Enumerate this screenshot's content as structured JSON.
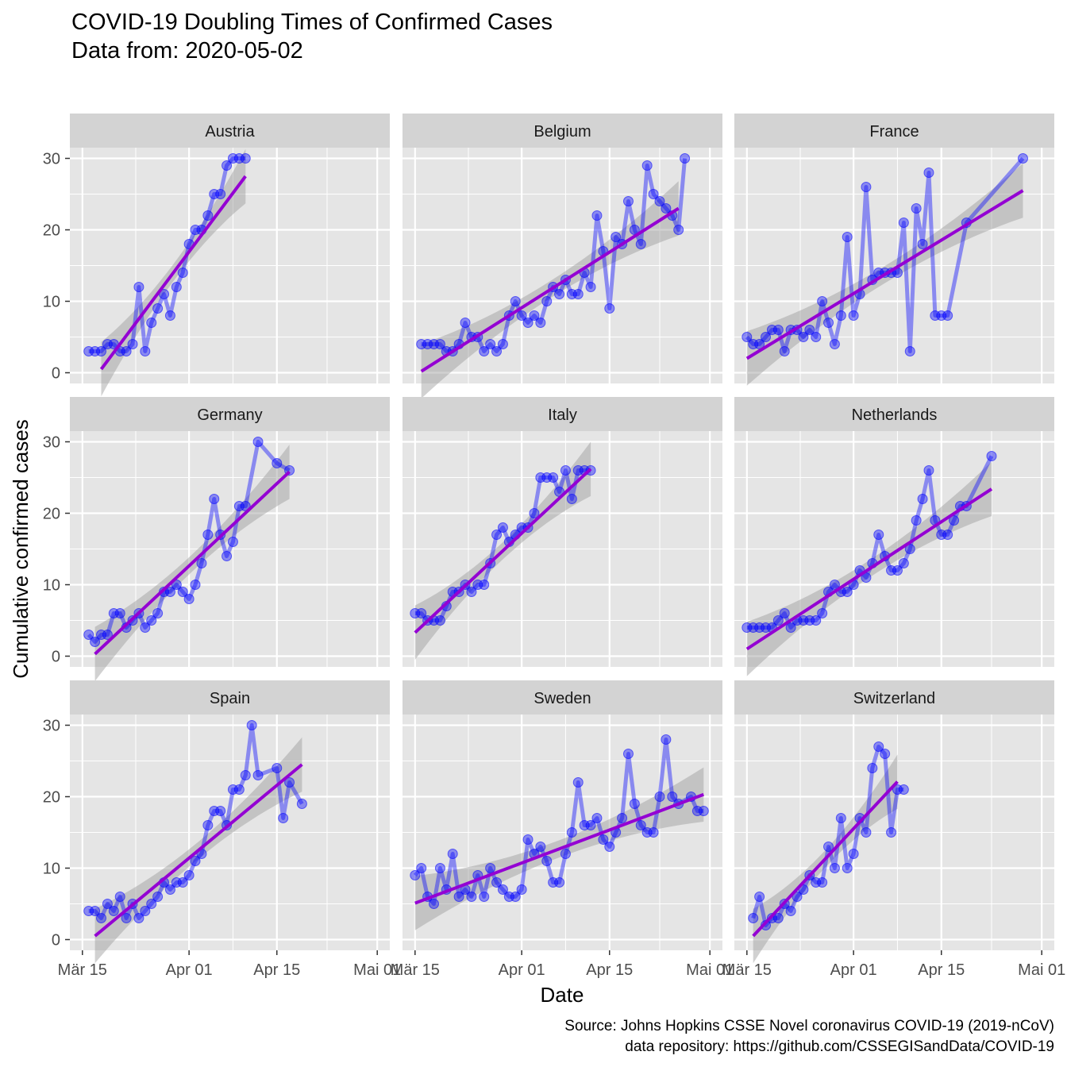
{
  "title": "COVID-19 Doubling Times of Confirmed Cases",
  "subtitle": "Data from: 2020-05-02",
  "caption": [
    "Source: Johns Hopkins CSSE Novel coronavirus COVID-19 (2019-nCoV)",
    "data repository: https://github.com/CSSEGISandData/COVID-19"
  ],
  "colors": {
    "panel_bg": "#e5e5e5",
    "strip_bg": "#d3d3d3",
    "grid": "#ffffff",
    "points": "#0000ff",
    "line": "#0000ff",
    "fit": "#9400d3",
    "ribbon": "#999999"
  },
  "chart_data": {
    "type": "line",
    "facet_layout": {
      "rows": 3,
      "cols": 3
    },
    "xlabel": "Date",
    "ylabel": "Cumulative confirmed cases",
    "x_ticks": [
      "Mär 15",
      "Apr 01",
      "Apr 15",
      "Mai 01"
    ],
    "x_tick_values": [
      "2020-03-15",
      "2020-04-01",
      "2020-04-15",
      "2020-05-01"
    ],
    "xlim": [
      "2020-03-13",
      "2020-05-03"
    ],
    "y_ticks": [
      0,
      10,
      20,
      30
    ],
    "ylim": [
      -1.5,
      31.5
    ],
    "grid": true,
    "fit": "linear regression with confidence band",
    "panels": [
      {
        "name": "Austria",
        "x": [
          "2020-03-16",
          "2020-03-17",
          "2020-03-18",
          "2020-03-19",
          "2020-03-20",
          "2020-03-21",
          "2020-03-22",
          "2020-03-23",
          "2020-03-24",
          "2020-03-25",
          "2020-03-26",
          "2020-03-27",
          "2020-03-28",
          "2020-03-29",
          "2020-03-30",
          "2020-03-31",
          "2020-04-01",
          "2020-04-02",
          "2020-04-03",
          "2020-04-04",
          "2020-04-05",
          "2020-04-06",
          "2020-04-07",
          "2020-04-08",
          "2020-04-09",
          "2020-04-10"
        ],
        "y": [
          3,
          3,
          3,
          4,
          4,
          3,
          3,
          4,
          12,
          3,
          7,
          9,
          11,
          8,
          12,
          14,
          18,
          20,
          20,
          22,
          25,
          25,
          29,
          30,
          30,
          30
        ],
        "fit": {
          "x": [
            "2020-03-18",
            "2020-04-10"
          ],
          "y": [
            0.5,
            27.5
          ]
        }
      },
      {
        "name": "Belgium",
        "x": [
          "2020-03-16",
          "2020-03-17",
          "2020-03-18",
          "2020-03-19",
          "2020-03-20",
          "2020-03-21",
          "2020-03-22",
          "2020-03-23",
          "2020-03-24",
          "2020-03-25",
          "2020-03-26",
          "2020-03-27",
          "2020-03-28",
          "2020-03-29",
          "2020-03-30",
          "2020-03-31",
          "2020-04-01",
          "2020-04-02",
          "2020-04-03",
          "2020-04-04",
          "2020-04-05",
          "2020-04-06",
          "2020-04-07",
          "2020-04-08",
          "2020-04-09",
          "2020-04-10",
          "2020-04-11",
          "2020-04-12",
          "2020-04-13",
          "2020-04-14",
          "2020-04-15",
          "2020-04-16",
          "2020-04-17",
          "2020-04-18",
          "2020-04-19",
          "2020-04-20",
          "2020-04-21",
          "2020-04-22",
          "2020-04-23",
          "2020-04-24",
          "2020-04-25",
          "2020-04-26",
          "2020-04-27"
        ],
        "y": [
          4,
          4,
          4,
          4,
          3,
          3,
          4,
          7,
          5,
          5,
          3,
          4,
          3,
          4,
          8,
          10,
          8,
          7,
          8,
          7,
          10,
          12,
          11,
          13,
          11,
          11,
          14,
          12,
          22,
          17,
          9,
          19,
          18,
          24,
          20,
          18,
          29,
          25,
          24,
          23,
          22,
          20,
          30
        ],
        "fit": {
          "x": [
            "2020-03-16",
            "2020-04-26"
          ],
          "y": [
            0.2,
            23.0
          ]
        }
      },
      {
        "name": "France",
        "x": [
          "2020-03-15",
          "2020-03-16",
          "2020-03-17",
          "2020-03-18",
          "2020-03-19",
          "2020-03-20",
          "2020-03-21",
          "2020-03-22",
          "2020-03-23",
          "2020-03-24",
          "2020-03-25",
          "2020-03-26",
          "2020-03-27",
          "2020-03-28",
          "2020-03-29",
          "2020-03-30",
          "2020-03-31",
          "2020-04-01",
          "2020-04-02",
          "2020-04-03",
          "2020-04-04",
          "2020-04-05",
          "2020-04-06",
          "2020-04-07",
          "2020-04-08",
          "2020-04-09",
          "2020-04-10",
          "2020-04-11",
          "2020-04-12",
          "2020-04-13",
          "2020-04-14",
          "2020-04-15",
          "2020-04-16",
          "2020-04-19",
          "2020-04-28"
        ],
        "y": [
          5,
          4,
          4,
          5,
          6,
          6,
          3,
          6,
          6,
          5,
          6,
          5,
          10,
          7,
          4,
          8,
          19,
          8,
          11,
          26,
          13,
          14,
          14,
          14,
          14,
          21,
          3,
          23,
          18,
          28,
          8,
          8,
          8,
          21,
          30
        ],
        "fit": {
          "x": [
            "2020-03-15",
            "2020-04-28"
          ],
          "y": [
            2.0,
            25.5
          ]
        }
      },
      {
        "name": "Germany",
        "x": [
          "2020-03-16",
          "2020-03-17",
          "2020-03-18",
          "2020-03-19",
          "2020-03-20",
          "2020-03-21",
          "2020-03-22",
          "2020-03-23",
          "2020-03-24",
          "2020-03-25",
          "2020-03-26",
          "2020-03-27",
          "2020-03-28",
          "2020-03-29",
          "2020-03-30",
          "2020-03-31",
          "2020-04-01",
          "2020-04-02",
          "2020-04-03",
          "2020-04-04",
          "2020-04-05",
          "2020-04-06",
          "2020-04-07",
          "2020-04-08",
          "2020-04-09",
          "2020-04-10",
          "2020-04-12",
          "2020-04-15",
          "2020-04-17"
        ],
        "y": [
          3,
          2,
          3,
          3,
          6,
          6,
          4,
          5,
          6,
          4,
          5,
          6,
          9,
          9,
          10,
          9,
          8,
          10,
          13,
          17,
          22,
          17,
          14,
          16,
          21,
          21,
          30,
          27,
          26
        ],
        "fit": {
          "x": [
            "2020-03-17",
            "2020-04-17"
          ],
          "y": [
            0.3,
            25.8
          ]
        }
      },
      {
        "name": "Italy",
        "x": [
          "2020-03-15",
          "2020-03-16",
          "2020-03-17",
          "2020-03-18",
          "2020-03-19",
          "2020-03-20",
          "2020-03-21",
          "2020-03-22",
          "2020-03-23",
          "2020-03-24",
          "2020-03-25",
          "2020-03-26",
          "2020-03-27",
          "2020-03-28",
          "2020-03-29",
          "2020-03-30",
          "2020-03-31",
          "2020-04-01",
          "2020-04-02",
          "2020-04-03",
          "2020-04-04",
          "2020-04-05",
          "2020-04-06",
          "2020-04-07",
          "2020-04-08",
          "2020-04-09",
          "2020-04-10",
          "2020-04-11",
          "2020-04-12"
        ],
        "y": [
          6,
          6,
          5,
          5,
          5,
          7,
          9,
          9,
          10,
          9,
          10,
          10,
          13,
          17,
          18,
          16,
          17,
          18,
          18,
          20,
          25,
          25,
          25,
          23,
          26,
          22,
          26,
          26,
          26
        ],
        "fit": {
          "x": [
            "2020-03-15",
            "2020-04-12"
          ],
          "y": [
            3.3,
            26.2
          ]
        }
      },
      {
        "name": "Netherlands",
        "x": [
          "2020-03-15",
          "2020-03-16",
          "2020-03-17",
          "2020-03-18",
          "2020-03-19",
          "2020-03-20",
          "2020-03-21",
          "2020-03-22",
          "2020-03-23",
          "2020-03-24",
          "2020-03-25",
          "2020-03-26",
          "2020-03-27",
          "2020-03-28",
          "2020-03-29",
          "2020-03-30",
          "2020-03-31",
          "2020-04-01",
          "2020-04-02",
          "2020-04-03",
          "2020-04-04",
          "2020-04-05",
          "2020-04-06",
          "2020-04-07",
          "2020-04-08",
          "2020-04-09",
          "2020-04-10",
          "2020-04-11",
          "2020-04-12",
          "2020-04-13",
          "2020-04-14",
          "2020-04-15",
          "2020-04-16",
          "2020-04-17",
          "2020-04-18",
          "2020-04-19",
          "2020-04-23"
        ],
        "y": [
          4,
          4,
          4,
          4,
          4,
          5,
          6,
          4,
          5,
          5,
          5,
          5,
          6,
          9,
          10,
          9,
          9,
          10,
          12,
          11,
          13,
          17,
          14,
          12,
          12,
          13,
          15,
          19,
          22,
          26,
          19,
          17,
          17,
          19,
          21,
          21,
          28
        ],
        "fit": {
          "x": [
            "2020-03-15",
            "2020-04-23"
          ],
          "y": [
            1.0,
            23.4
          ]
        }
      },
      {
        "name": "Spain",
        "x": [
          "2020-03-16",
          "2020-03-17",
          "2020-03-18",
          "2020-03-19",
          "2020-03-20",
          "2020-03-21",
          "2020-03-22",
          "2020-03-23",
          "2020-03-24",
          "2020-03-25",
          "2020-03-26",
          "2020-03-27",
          "2020-03-28",
          "2020-03-29",
          "2020-03-30",
          "2020-03-31",
          "2020-04-01",
          "2020-04-02",
          "2020-04-03",
          "2020-04-04",
          "2020-04-05",
          "2020-04-06",
          "2020-04-07",
          "2020-04-08",
          "2020-04-09",
          "2020-04-10",
          "2020-04-11",
          "2020-04-12",
          "2020-04-15",
          "2020-04-16",
          "2020-04-17",
          "2020-04-19"
        ],
        "y": [
          4,
          4,
          3,
          5,
          4,
          6,
          3,
          5,
          3,
          4,
          5,
          6,
          8,
          7,
          8,
          8,
          9,
          11,
          12,
          16,
          18,
          18,
          16,
          21,
          21,
          23,
          30,
          23,
          24,
          17,
          22,
          19
        ],
        "fit": {
          "x": [
            "2020-03-17",
            "2020-04-19"
          ],
          "y": [
            0.5,
            24.5
          ]
        }
      },
      {
        "name": "Sweden",
        "x": [
          "2020-03-15",
          "2020-03-16",
          "2020-03-17",
          "2020-03-18",
          "2020-03-19",
          "2020-03-20",
          "2020-03-21",
          "2020-03-22",
          "2020-03-23",
          "2020-03-24",
          "2020-03-25",
          "2020-03-26",
          "2020-03-27",
          "2020-03-28",
          "2020-03-29",
          "2020-03-30",
          "2020-03-31",
          "2020-04-01",
          "2020-04-02",
          "2020-04-03",
          "2020-04-04",
          "2020-04-05",
          "2020-04-06",
          "2020-04-07",
          "2020-04-08",
          "2020-04-09",
          "2020-04-10",
          "2020-04-11",
          "2020-04-12",
          "2020-04-13",
          "2020-04-14",
          "2020-04-15",
          "2020-04-16",
          "2020-04-17",
          "2020-04-18",
          "2020-04-19",
          "2020-04-20",
          "2020-04-21",
          "2020-04-22",
          "2020-04-23",
          "2020-04-24",
          "2020-04-25",
          "2020-04-26",
          "2020-04-28",
          "2020-04-29",
          "2020-04-30"
        ],
        "y": [
          9,
          10,
          6,
          5,
          10,
          7,
          12,
          6,
          7,
          6,
          9,
          6,
          10,
          8,
          7,
          6,
          6,
          7,
          14,
          12,
          13,
          11,
          8,
          8,
          12,
          15,
          22,
          16,
          16,
          17,
          14,
          13,
          15,
          17,
          26,
          19,
          16,
          15,
          15,
          20,
          28,
          20,
          19,
          20,
          18,
          18
        ],
        "fit": {
          "x": [
            "2020-03-15",
            "2020-04-30"
          ],
          "y": [
            5.1,
            20.3
          ]
        }
      },
      {
        "name": "Switzerland",
        "x": [
          "2020-03-16",
          "2020-03-17",
          "2020-03-18",
          "2020-03-19",
          "2020-03-20",
          "2020-03-21",
          "2020-03-22",
          "2020-03-23",
          "2020-03-24",
          "2020-03-25",
          "2020-03-26",
          "2020-03-27",
          "2020-03-28",
          "2020-03-29",
          "2020-03-30",
          "2020-03-31",
          "2020-04-01",
          "2020-04-02",
          "2020-04-03",
          "2020-04-04",
          "2020-04-05",
          "2020-04-06",
          "2020-04-07",
          "2020-04-08",
          "2020-04-09"
        ],
        "y": [
          3,
          6,
          2,
          3,
          3,
          5,
          4,
          6,
          7,
          9,
          8,
          8,
          13,
          10,
          17,
          10,
          12,
          17,
          15,
          24,
          27,
          26,
          15,
          21,
          21
        ],
        "fit": {
          "x": [
            "2020-03-16",
            "2020-04-08"
          ],
          "y": [
            0.5,
            22.1
          ]
        }
      }
    ]
  }
}
